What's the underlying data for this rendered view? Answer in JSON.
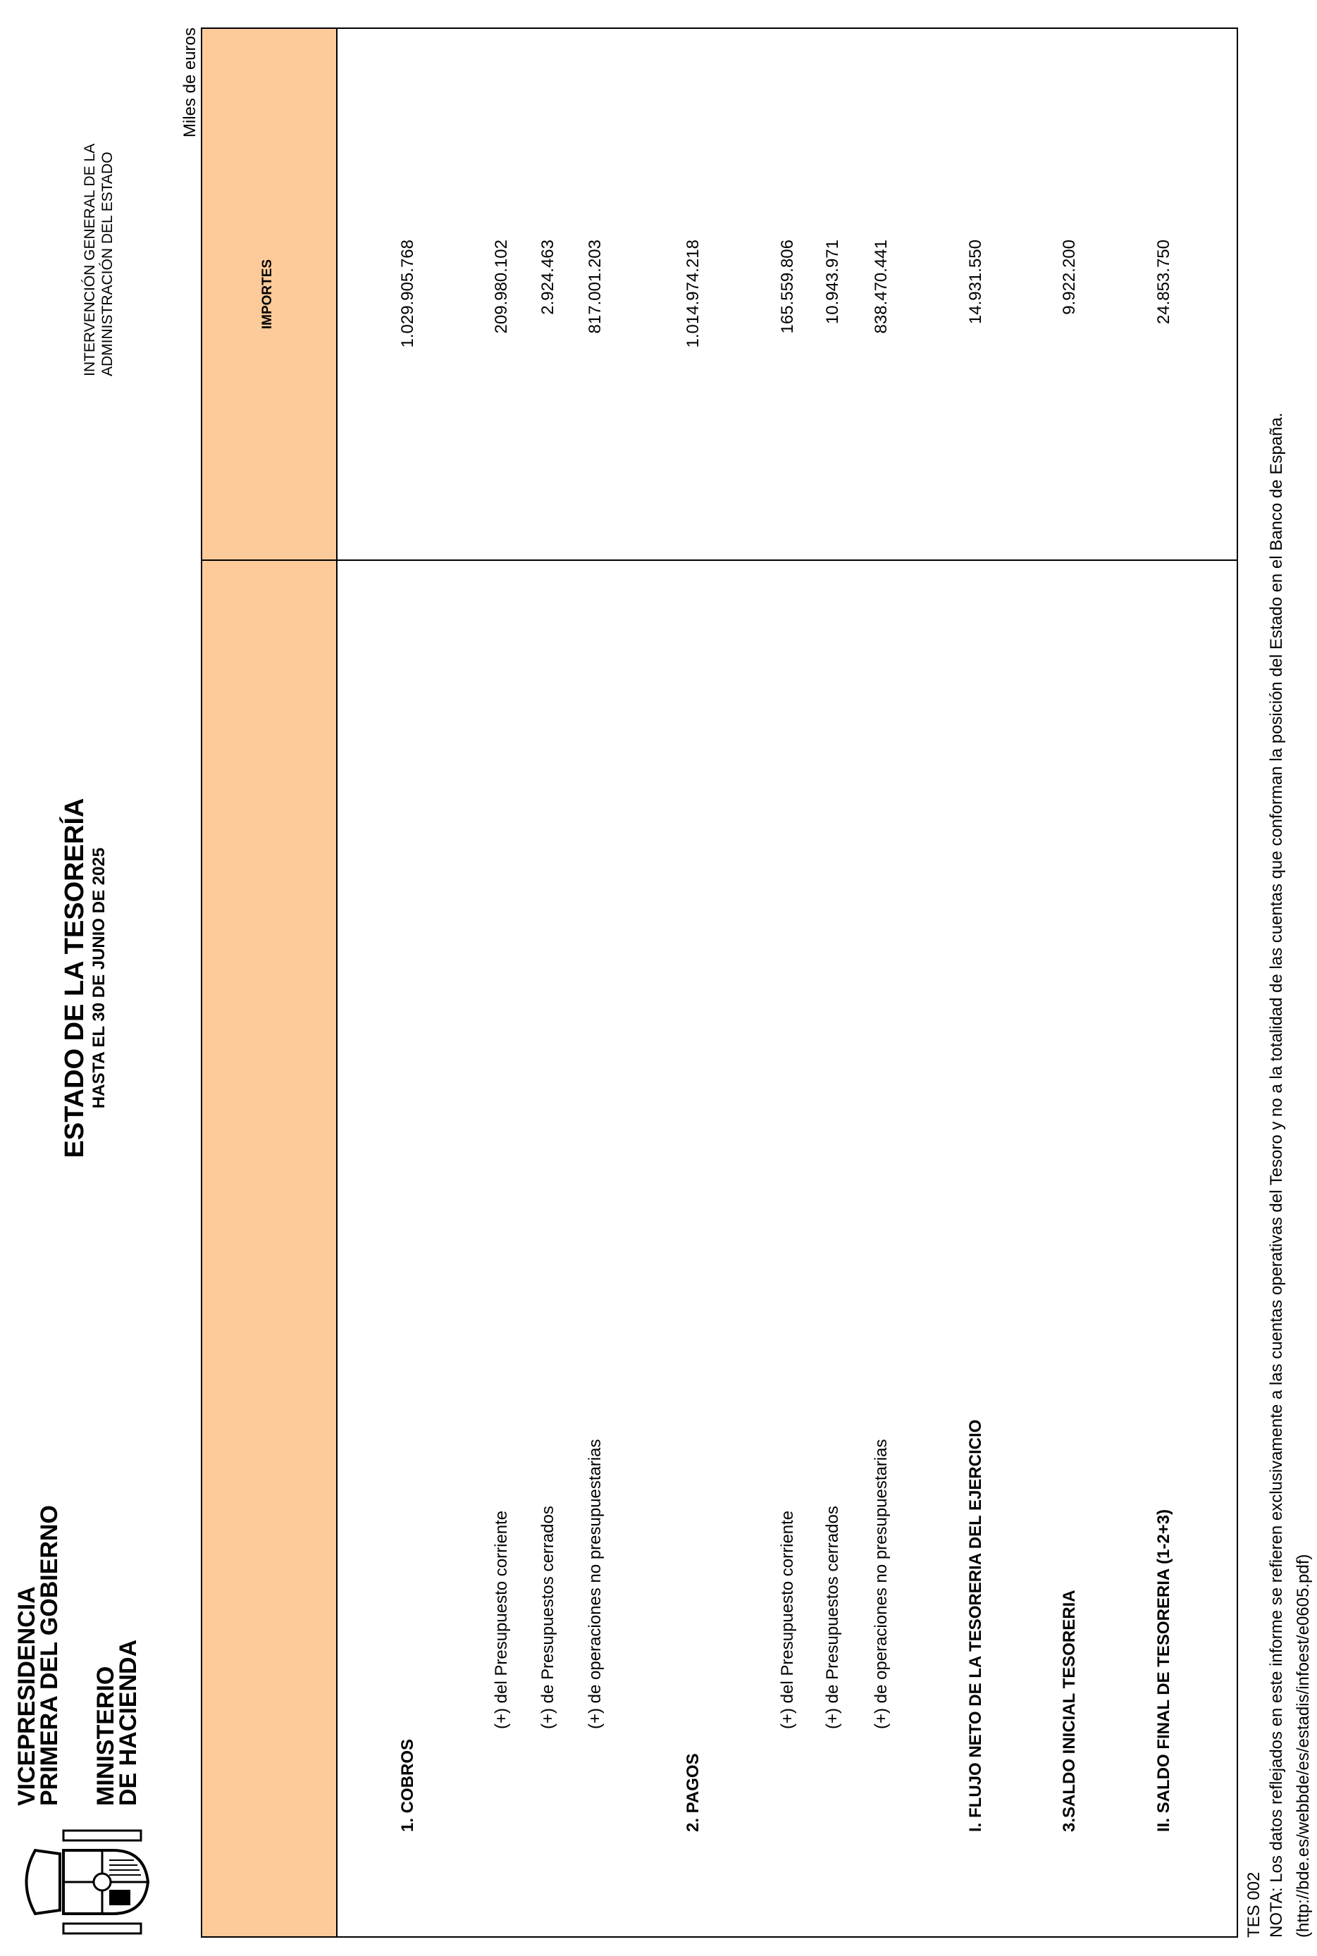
{
  "header": {
    "org_line1": "VICEPRESIDENCIA",
    "org_line2": "PRIMERA DEL GOBIERNO",
    "ministry_line1": "MINISTERIO",
    "ministry_line2": "DE HACIENDA",
    "title": "ESTADO DE LA TESORERÍA",
    "subtitle": "HASTA EL 30 DE JUNIO DE 2025",
    "agency_line1": "INTERVENCIÓN GENERAL DE LA",
    "agency_line2": "ADMINISTRACIÓN DEL ESTADO",
    "units": "Miles de euros",
    "logo": "escudo-de-espana"
  },
  "table": {
    "header_color": "#FDCB9A",
    "amount_header": "IMPORTES",
    "rows": [
      {
        "label": "1. COBROS",
        "amount": "1.029.905.768"
      },
      {
        "label": "(+) del Presupuesto corriente",
        "amount": "209.980.102"
      },
      {
        "label": "(+) de Presupuestos cerrados",
        "amount": "2.924.463"
      },
      {
        "label": "(+) de operaciones no presupuestarias",
        "amount": "817.001.203"
      },
      {
        "label": "2. PAGOS",
        "amount": "1.014.974.218"
      },
      {
        "label": "(+) del Presupuesto corriente",
        "amount": "165.559.806"
      },
      {
        "label": "(+) de Presupuestos cerrados",
        "amount": "10.943.971"
      },
      {
        "label": "(+) de operaciones no presupuestarias",
        "amount": "838.470.441"
      },
      {
        "label": "I. FLUJO NETO DE LA TESORERIA DEL EJERCICIO",
        "amount": "14.931.550"
      },
      {
        "label": "3.SALDO INICIAL TESORERIA",
        "amount": "9.922.200"
      },
      {
        "label": "II. SALDO FINAL DE TESORERIA (1-2+3)",
        "amount": "24.853.750"
      }
    ]
  },
  "footer": {
    "code": "TES 002",
    "note": "NOTA: Los datos reflejados en este informe se refieren exclusivamente a las cuentas operativas del Tesoro y no a la totalidad de las cuentas que conforman la posición del Estado en el Banco de España.",
    "url": "(http://bde.es/webbde/es/estadis/infoest/e0605.pdf)"
  }
}
